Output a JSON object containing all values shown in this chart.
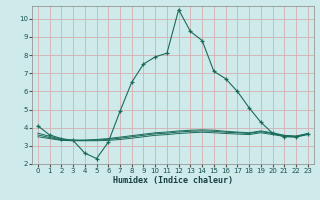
{
  "xlabel": "Humidex (Indice chaleur)",
  "bg_color": "#ceeaea",
  "grid_color": "#d4b0b0",
  "line_color": "#1a6b5a",
  "xlim": [
    -0.5,
    23.5
  ],
  "ylim": [
    2,
    10.7
  ],
  "yticks": [
    2,
    3,
    4,
    5,
    6,
    7,
    8,
    9,
    10
  ],
  "xticks": [
    0,
    1,
    2,
    3,
    4,
    5,
    6,
    7,
    8,
    9,
    10,
    11,
    12,
    13,
    14,
    15,
    16,
    17,
    18,
    19,
    20,
    21,
    22,
    23
  ],
  "series_main": {
    "x": [
      0,
      1,
      2,
      3,
      4,
      5,
      6,
      7,
      8,
      9,
      10,
      11,
      12,
      13,
      14,
      15,
      16,
      17,
      18,
      19,
      20,
      21,
      22,
      23
    ],
    "y": [
      4.1,
      3.6,
      3.4,
      3.3,
      2.6,
      2.3,
      3.2,
      4.9,
      6.5,
      7.5,
      7.9,
      8.1,
      10.5,
      9.3,
      8.8,
      7.1,
      6.7,
      6.0,
      5.1,
      4.3,
      3.7,
      3.5,
      3.5,
      3.65
    ]
  },
  "series_flat": [
    {
      "x": [
        0,
        2,
        3,
        4,
        5,
        6,
        7,
        8,
        9,
        10,
        11,
        12,
        13,
        14,
        15,
        16,
        17,
        18,
        19,
        20,
        21,
        22,
        23
      ],
      "y": [
        3.5,
        3.3,
        3.28,
        3.28,
        3.28,
        3.3,
        3.35,
        3.42,
        3.5,
        3.58,
        3.62,
        3.68,
        3.72,
        3.75,
        3.72,
        3.68,
        3.65,
        3.62,
        3.72,
        3.62,
        3.52,
        3.48,
        3.62
      ]
    },
    {
      "x": [
        0,
        2,
        3,
        4,
        5,
        6,
        7,
        8,
        9,
        10,
        11,
        12,
        13,
        14,
        15,
        16,
        17,
        18,
        19,
        20,
        21,
        22,
        23
      ],
      "y": [
        3.6,
        3.32,
        3.3,
        3.3,
        3.32,
        3.36,
        3.42,
        3.5,
        3.58,
        3.66,
        3.7,
        3.76,
        3.8,
        3.82,
        3.8,
        3.75,
        3.72,
        3.68,
        3.78,
        3.68,
        3.56,
        3.52,
        3.66
      ]
    },
    {
      "x": [
        0,
        2,
        3,
        4,
        5,
        6,
        7,
        8,
        9,
        10,
        11,
        12,
        13,
        14,
        15,
        16,
        17,
        18,
        19,
        20,
        21,
        22,
        23
      ],
      "y": [
        3.7,
        3.35,
        3.32,
        3.32,
        3.35,
        3.4,
        3.48,
        3.56,
        3.64,
        3.72,
        3.76,
        3.82,
        3.86,
        3.88,
        3.86,
        3.8,
        3.76,
        3.72,
        3.82,
        3.72,
        3.58,
        3.54,
        3.68
      ]
    }
  ]
}
